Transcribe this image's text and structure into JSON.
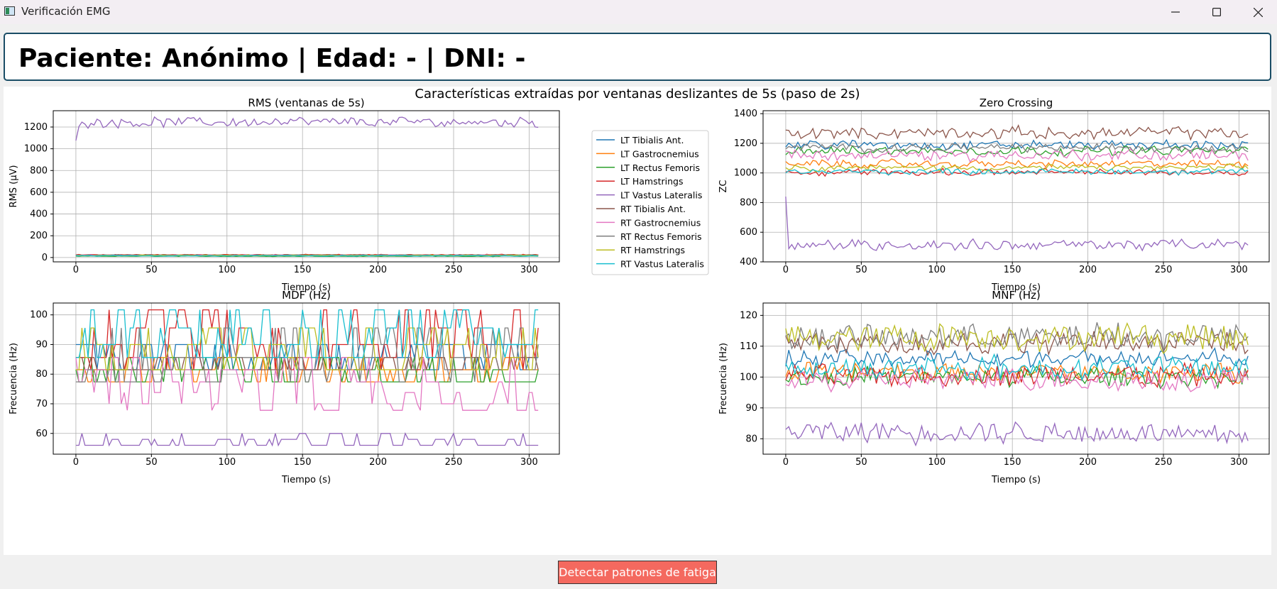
{
  "window": {
    "title": "Verificación EMG"
  },
  "patient": {
    "header": "Paciente: Anónimo | Edad: - | DNI: -"
  },
  "figure": {
    "suptitle": "Características extraídas por ventanas deslizantes de 5s (paso de 2s)"
  },
  "button": {
    "label": "Detectar patrones de fatiga"
  },
  "icons": {
    "minimize": "minimize-icon",
    "maximize": "maximize-icon",
    "close": "close-icon"
  },
  "legend": [
    {
      "name": "LT Tibialis Ant.",
      "color": "#1f77b4"
    },
    {
      "name": "LT Gastrocnemius",
      "color": "#ff7f0e"
    },
    {
      "name": "LT Rectus Femoris",
      "color": "#2ca02c"
    },
    {
      "name": "LT Hamstrings",
      "color": "#d62728"
    },
    {
      "name": "LT Vastus Lateralis",
      "color": "#9467bd"
    },
    {
      "name": "RT Tibialis Ant.",
      "color": "#8c564b"
    },
    {
      "name": "RT Gastrocnemius",
      "color": "#e377c2"
    },
    {
      "name": "RT Rectus Femoris",
      "color": "#7f7f7f"
    },
    {
      "name": "RT Hamstrings",
      "color": "#bcbd22"
    },
    {
      "name": "RT Vastus Lateralis",
      "color": "#17becf"
    }
  ],
  "chart_data": [
    {
      "type": "line",
      "title": "RMS (ventanas de 5s)",
      "xlabel": "Tiempo (s)",
      "ylabel": "RMS (µV)",
      "xlim": [
        -15,
        320
      ],
      "ylim": [
        -40,
        1350
      ],
      "xticks": [
        0,
        50,
        100,
        150,
        200,
        250,
        300
      ],
      "yticks": [
        0,
        200,
        400,
        600,
        800,
        1000,
        1200
      ],
      "grid": true,
      "x_start": 0,
      "x_step": 2,
      "x_end": 306,
      "series": [
        {
          "name": "LT Tibialis Ant.",
          "mean": 18,
          "noise": 3,
          "fluct": 1
        },
        {
          "name": "LT Gastrocnemius",
          "mean": 20,
          "noise": 3,
          "fluct": 1
        },
        {
          "name": "LT Rectus Femoris",
          "mean": 12,
          "noise": 2,
          "fluct": 1
        },
        {
          "name": "LT Hamstrings",
          "mean": 25,
          "noise": 4,
          "fluct": 1
        },
        {
          "name": "LT Vastus Lateralis",
          "mean": 1245,
          "noise": 35,
          "fluct": 15,
          "start": 1075
        },
        {
          "name": "RT Tibialis Ant.",
          "mean": 24,
          "noise": 3,
          "fluct": 1
        },
        {
          "name": "RT Gastrocnemius",
          "mean": 22,
          "noise": 3,
          "fluct": 1
        },
        {
          "name": "RT Rectus Femoris",
          "mean": 21,
          "noise": 3,
          "fluct": 1
        },
        {
          "name": "RT Hamstrings",
          "mean": 19,
          "noise": 3,
          "fluct": 1
        },
        {
          "name": "RT Vastus Lateralis",
          "mean": 16,
          "noise": 3,
          "fluct": 1
        }
      ]
    },
    {
      "type": "line",
      "title": "Zero Crossing",
      "xlabel": "Tiempo (s)",
      "ylabel": "ZC",
      "xlim": [
        -15,
        320
      ],
      "ylim": [
        400,
        1420
      ],
      "xticks": [
        0,
        50,
        100,
        150,
        200,
        250,
        300
      ],
      "yticks": [
        400,
        600,
        800,
        1000,
        1200,
        1400
      ],
      "grid": true,
      "x_start": 0,
      "x_step": 2,
      "x_end": 306,
      "series": [
        {
          "name": "LT Tibialis Ant.",
          "mean": 1190,
          "noise": 25,
          "fluct": 10
        },
        {
          "name": "LT Gastrocnemius",
          "mean": 1060,
          "noise": 20,
          "fluct": 10
        },
        {
          "name": "LT Rectus Femoris",
          "mean": 1150,
          "noise": 25,
          "fluct": 10
        },
        {
          "name": "LT Hamstrings",
          "mean": 1005,
          "noise": 18,
          "fluct": 8
        },
        {
          "name": "LT Vastus Lateralis",
          "mean": 515,
          "noise": 28,
          "fluct": 15,
          "start": 840
        },
        {
          "name": "RT Tibialis Ant.",
          "mean": 1270,
          "noise": 30,
          "fluct": 15
        },
        {
          "name": "RT Gastrocnemius",
          "mean": 1120,
          "noise": 30,
          "fluct": 15
        },
        {
          "name": "RT Rectus Femoris",
          "mean": 1170,
          "noise": 20,
          "fluct": 10
        },
        {
          "name": "RT Hamstrings",
          "mean": 1035,
          "noise": 15,
          "fluct": 8
        },
        {
          "name": "RT Vastus Lateralis",
          "mean": 1010,
          "noise": 15,
          "fluct": 8
        }
      ]
    },
    {
      "type": "line",
      "title": "MDF (Hz)",
      "xlabel": "Tiempo (s)",
      "ylabel": "Frecuencia (Hz)",
      "xlim": [
        -15,
        320
      ],
      "ylim": [
        53,
        104
      ],
      "xticks": [
        0,
        50,
        100,
        150,
        200,
        250,
        300
      ],
      "yticks": [
        60,
        70,
        80,
        90,
        100
      ],
      "grid": true,
      "x_start": 0,
      "x_step": 2,
      "x_end": 306,
      "series": [
        {
          "name": "LT Tibialis Ant.",
          "levels": [
            81.5,
            85.6,
            90
          ]
        },
        {
          "name": "LT Gastrocnemius",
          "levels": [
            77.4,
            81.5,
            85.6
          ]
        },
        {
          "name": "LT Rectus Femoris",
          "levels": [
            77.4,
            81.5,
            85.6
          ]
        },
        {
          "name": "LT Hamstrings",
          "levels": [
            81.5,
            85.6,
            90,
            95.6,
            101.7
          ]
        },
        {
          "name": "LT Vastus Lateralis",
          "levels": [
            56,
            56,
            56,
            58,
            60
          ]
        },
        {
          "name": "RT Tibialis Ant.",
          "levels": [
            81.5,
            85.6
          ]
        },
        {
          "name": "RT Gastrocnemius",
          "levels": [
            67.8,
            70,
            73.8,
            77.4,
            81.5,
            85.6
          ]
        },
        {
          "name": "RT Rectus Femoris",
          "levels": [
            77.4,
            81.5,
            85.6,
            90,
            95.6
          ]
        },
        {
          "name": "RT Hamstrings",
          "levels": [
            81.5,
            85.6,
            90,
            95.6
          ]
        },
        {
          "name": "RT Vastus Lateralis",
          "levels": [
            85.6,
            90,
            95.6,
            101.7
          ]
        }
      ]
    },
    {
      "type": "line",
      "title": "MNF (Hz)",
      "xlabel": "Tiempo (s)",
      "ylabel": "Frecuencia (Hz)",
      "xlim": [
        -15,
        320
      ],
      "ylim": [
        75,
        124
      ],
      "xticks": [
        0,
        50,
        100,
        150,
        200,
        250,
        300
      ],
      "yticks": [
        80,
        90,
        100,
        110,
        120
      ],
      "grid": true,
      "x_start": 0,
      "x_step": 2,
      "x_end": 306,
      "series": [
        {
          "name": "LT Tibialis Ant.",
          "mean": 106,
          "noise": 2.5,
          "fluct": 1
        },
        {
          "name": "LT Gastrocnemius",
          "mean": 101.5,
          "noise": 2.5,
          "fluct": 1
        },
        {
          "name": "LT Rectus Femoris",
          "mean": 100,
          "noise": 2.5,
          "fluct": 1
        },
        {
          "name": "LT Hamstrings",
          "mean": 100.5,
          "noise": 3,
          "fluct": 1
        },
        {
          "name": "LT Vastus Lateralis",
          "mean": 82,
          "noise": 3,
          "fluct": 1,
          "start": 83
        },
        {
          "name": "RT Tibialis Ant.",
          "mean": 111,
          "noise": 3,
          "fluct": 1
        },
        {
          "name": "RT Gastrocnemius",
          "mean": 99,
          "noise": 3,
          "fluct": 1
        },
        {
          "name": "RT Rectus Femoris",
          "mean": 113,
          "noise": 3.5,
          "fluct": 1
        },
        {
          "name": "RT Hamstrings",
          "mean": 113,
          "noise": 4,
          "fluct": 1
        },
        {
          "name": "RT Vastus Lateralis",
          "mean": 103,
          "noise": 3,
          "fluct": 1
        }
      ]
    }
  ]
}
